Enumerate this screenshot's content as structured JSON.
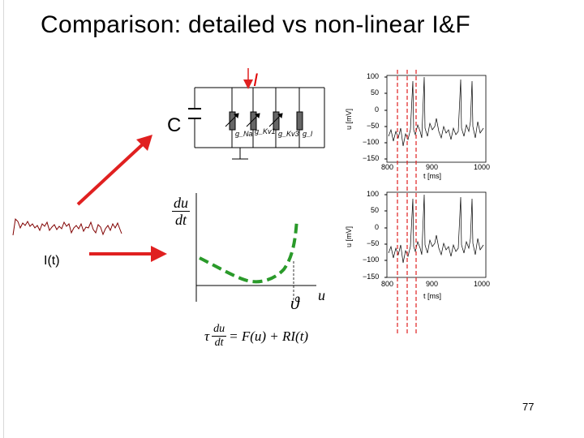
{
  "slide": {
    "title": "Comparison: detailed vs non-linear I&F",
    "page_number": "77"
  },
  "circuit": {
    "current_label": "I",
    "capacitor_label": "C",
    "conductances": [
      "g_Na",
      "g_Kv1",
      "g_Kv3",
      "g_l"
    ]
  },
  "input": {
    "label": "I(t)"
  },
  "phase_plot": {
    "y_numerator": "du",
    "y_denominator": "dt",
    "x_label": "u",
    "threshold_label": "ϑ",
    "curve_color": "#2a9a2a"
  },
  "equation": {
    "tau": "τ",
    "numerator": "du",
    "denominator": "dt",
    "rhs": "= F(u) + RI(t)"
  },
  "traces": {
    "ylabel": "u [mV]",
    "xlabel": "t [ms]",
    "y_ticks": [
      "100",
      "50",
      "0",
      "−50",
      "−100",
      "−150"
    ],
    "x_ticks": [
      "800",
      "900",
      "1000"
    ]
  },
  "colors": {
    "arrow": "#e02020",
    "dashed_lines": "#e02020"
  }
}
